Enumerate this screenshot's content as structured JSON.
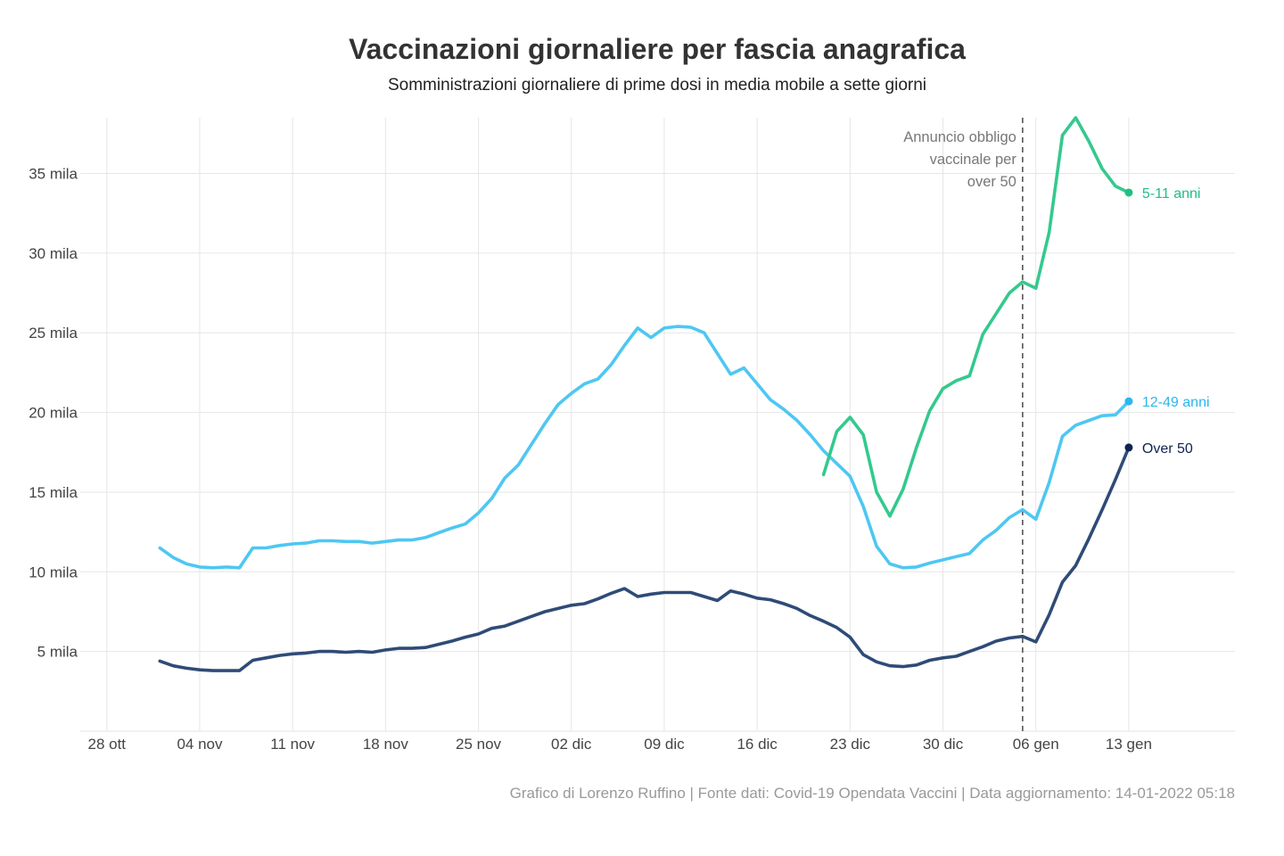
{
  "chart_data": {
    "type": "line",
    "title": "Vaccinazioni giornaliere per fascia anagrafica",
    "subtitle": "Somministrazioni giornaliere di prime dosi in media mobile a sette giorni",
    "caption": "Grafico di Lorenzo Ruffino | Fonte dati: Covid-19 Opendata Vaccini | Data aggiornamento: 14-01-2022 05:18",
    "xlabel": "",
    "ylabel": "",
    "unit": "mila",
    "grid": true,
    "legend": "direct labels at line ends (right)",
    "xlim": [
      "2021-10-26",
      "2022-01-21"
    ],
    "ylim": [
      0,
      38.5
    ],
    "y_ticks": [
      {
        "value": 5,
        "label": "5 mila"
      },
      {
        "value": 10,
        "label": "10 mila"
      },
      {
        "value": 15,
        "label": "15 mila"
      },
      {
        "value": 20,
        "label": "20 mila"
      },
      {
        "value": 25,
        "label": "25 mila"
      },
      {
        "value": 30,
        "label": "30 mila"
      },
      {
        "value": 35,
        "label": "35 mila"
      }
    ],
    "x_ticks": [
      {
        "date": "2021-10-28",
        "label": "28 ott"
      },
      {
        "date": "2021-11-04",
        "label": "04 nov"
      },
      {
        "date": "2021-11-11",
        "label": "11 nov"
      },
      {
        "date": "2021-11-18",
        "label": "18 nov"
      },
      {
        "date": "2021-11-25",
        "label": "25 nov"
      },
      {
        "date": "2021-12-02",
        "label": "02 dic"
      },
      {
        "date": "2021-12-09",
        "label": "09 dic"
      },
      {
        "date": "2021-12-16",
        "label": "16 dic"
      },
      {
        "date": "2021-12-23",
        "label": "23 dic"
      },
      {
        "date": "2021-12-30",
        "label": "30 dic"
      },
      {
        "date": "2022-01-06",
        "label": "06 gen"
      },
      {
        "date": "2022-01-13",
        "label": "13 gen"
      }
    ],
    "annotation": {
      "date": "2022-01-05",
      "lines": [
        "Annuncio obbligo",
        "vaccinale per",
        "over 50"
      ],
      "color": "#555555"
    },
    "dates": [
      "2021-11-01",
      "2021-11-02",
      "2021-11-03",
      "2021-11-04",
      "2021-11-05",
      "2021-11-06",
      "2021-11-07",
      "2021-11-08",
      "2021-11-09",
      "2021-11-10",
      "2021-11-11",
      "2021-11-12",
      "2021-11-13",
      "2021-11-14",
      "2021-11-15",
      "2021-11-16",
      "2021-11-17",
      "2021-11-18",
      "2021-11-19",
      "2021-11-20",
      "2021-11-21",
      "2021-11-22",
      "2021-11-23",
      "2021-11-24",
      "2021-11-25",
      "2021-11-26",
      "2021-11-27",
      "2021-11-28",
      "2021-11-29",
      "2021-11-30",
      "2021-12-01",
      "2021-12-02",
      "2021-12-03",
      "2021-12-04",
      "2021-12-05",
      "2021-12-06",
      "2021-12-07",
      "2021-12-08",
      "2021-12-09",
      "2021-12-10",
      "2021-12-11",
      "2021-12-12",
      "2021-12-13",
      "2021-12-14",
      "2021-12-15",
      "2021-12-16",
      "2021-12-17",
      "2021-12-18",
      "2021-12-19",
      "2021-12-20",
      "2021-12-21",
      "2021-12-22",
      "2021-12-23",
      "2021-12-24",
      "2021-12-25",
      "2021-12-26",
      "2021-12-27",
      "2021-12-28",
      "2021-12-29",
      "2021-12-30",
      "2021-12-31",
      "2022-01-01",
      "2022-01-02",
      "2022-01-03",
      "2022-01-04",
      "2022-01-05",
      "2022-01-06",
      "2022-01-07",
      "2022-01-08",
      "2022-01-09",
      "2022-01-10",
      "2022-01-11",
      "2022-01-12",
      "2022-01-13"
    ],
    "series": [
      {
        "name": "12-49 anni",
        "color": "#4ec7f2",
        "label_color": "#2bb6ee",
        "values": [
          11.5,
          10.9,
          10.5,
          10.3,
          10.25,
          10.3,
          10.25,
          11.5,
          11.5,
          11.65,
          11.75,
          11.8,
          11.95,
          11.95,
          11.9,
          11.9,
          11.8,
          11.9,
          12.0,
          12.0,
          12.15,
          12.45,
          12.75,
          13.0,
          13.7,
          14.6,
          15.9,
          16.7,
          18.0,
          19.3,
          20.5,
          21.2,
          21.8,
          22.1,
          23.0,
          24.2,
          25.3,
          24.7,
          25.3,
          25.4,
          25.35,
          25.0,
          23.7,
          22.4,
          22.8,
          21.8,
          20.8,
          20.2,
          19.5,
          18.6,
          17.6,
          16.8,
          16.0,
          14.1,
          11.6,
          10.5,
          10.25,
          10.3,
          10.55,
          10.75,
          10.95,
          11.15,
          12.0,
          12.6,
          13.4,
          13.9,
          13.3,
          15.6,
          18.5,
          19.2,
          19.5,
          19.8,
          19.85,
          20.7
        ]
      },
      {
        "name": "Over 50",
        "color": "#2f4b77",
        "label_color": "#0d2350",
        "values": [
          4.4,
          4.1,
          3.95,
          3.85,
          3.8,
          3.8,
          3.8,
          4.45,
          4.6,
          4.75,
          4.85,
          4.9,
          5.0,
          5.0,
          4.95,
          5.0,
          4.95,
          5.1,
          5.2,
          5.2,
          5.25,
          5.45,
          5.65,
          5.9,
          6.1,
          6.45,
          6.6,
          6.9,
          7.2,
          7.5,
          7.7,
          7.9,
          8.0,
          8.3,
          8.65,
          8.95,
          8.45,
          8.6,
          8.7,
          8.7,
          8.7,
          8.45,
          8.2,
          8.8,
          8.6,
          8.35,
          8.25,
          8.0,
          7.7,
          7.25,
          6.9,
          6.5,
          5.9,
          4.8,
          4.35,
          4.1,
          4.05,
          4.15,
          4.45,
          4.6,
          4.7,
          5.0,
          5.3,
          5.65,
          5.85,
          5.95,
          5.6,
          7.3,
          9.35,
          10.4,
          12.1,
          13.9,
          15.8,
          17.8
        ]
      },
      {
        "name": "5-11 anni",
        "color": "#34c98e",
        "label_color": "#1fbf82",
        "values": [
          null,
          null,
          null,
          null,
          null,
          null,
          null,
          null,
          null,
          null,
          null,
          null,
          null,
          null,
          null,
          null,
          null,
          null,
          null,
          null,
          null,
          null,
          null,
          null,
          null,
          null,
          null,
          null,
          null,
          null,
          null,
          null,
          null,
          null,
          null,
          null,
          null,
          null,
          null,
          null,
          null,
          null,
          null,
          null,
          null,
          null,
          null,
          null,
          null,
          null,
          16.1,
          18.8,
          19.7,
          18.6,
          15.0,
          13.5,
          15.2,
          17.8,
          20.1,
          21.5,
          22.0,
          22.3,
          24.9,
          26.2,
          27.5,
          28.2,
          27.8,
          31.3,
          37.4,
          38.5,
          37.0,
          35.3,
          34.2,
          33.8
        ]
      }
    ]
  }
}
